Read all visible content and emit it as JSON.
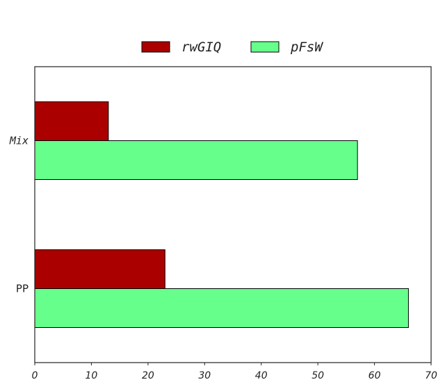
{
  "chart_data": {
    "type": "bar",
    "orientation": "horizontal",
    "categories": [
      "Mix",
      "PP"
    ],
    "series": [
      {
        "name": "rwGIQ",
        "values": [
          13,
          23
        ],
        "color": "#aa0000"
      },
      {
        "name": "pFsW",
        "values": [
          57,
          66
        ],
        "color": "#66ff8c"
      }
    ],
    "xlim": [
      0,
      70
    ],
    "xticks": [
      0,
      10,
      20,
      30,
      40,
      50,
      60,
      70
    ],
    "grid": false,
    "legend_position": "top-center"
  }
}
